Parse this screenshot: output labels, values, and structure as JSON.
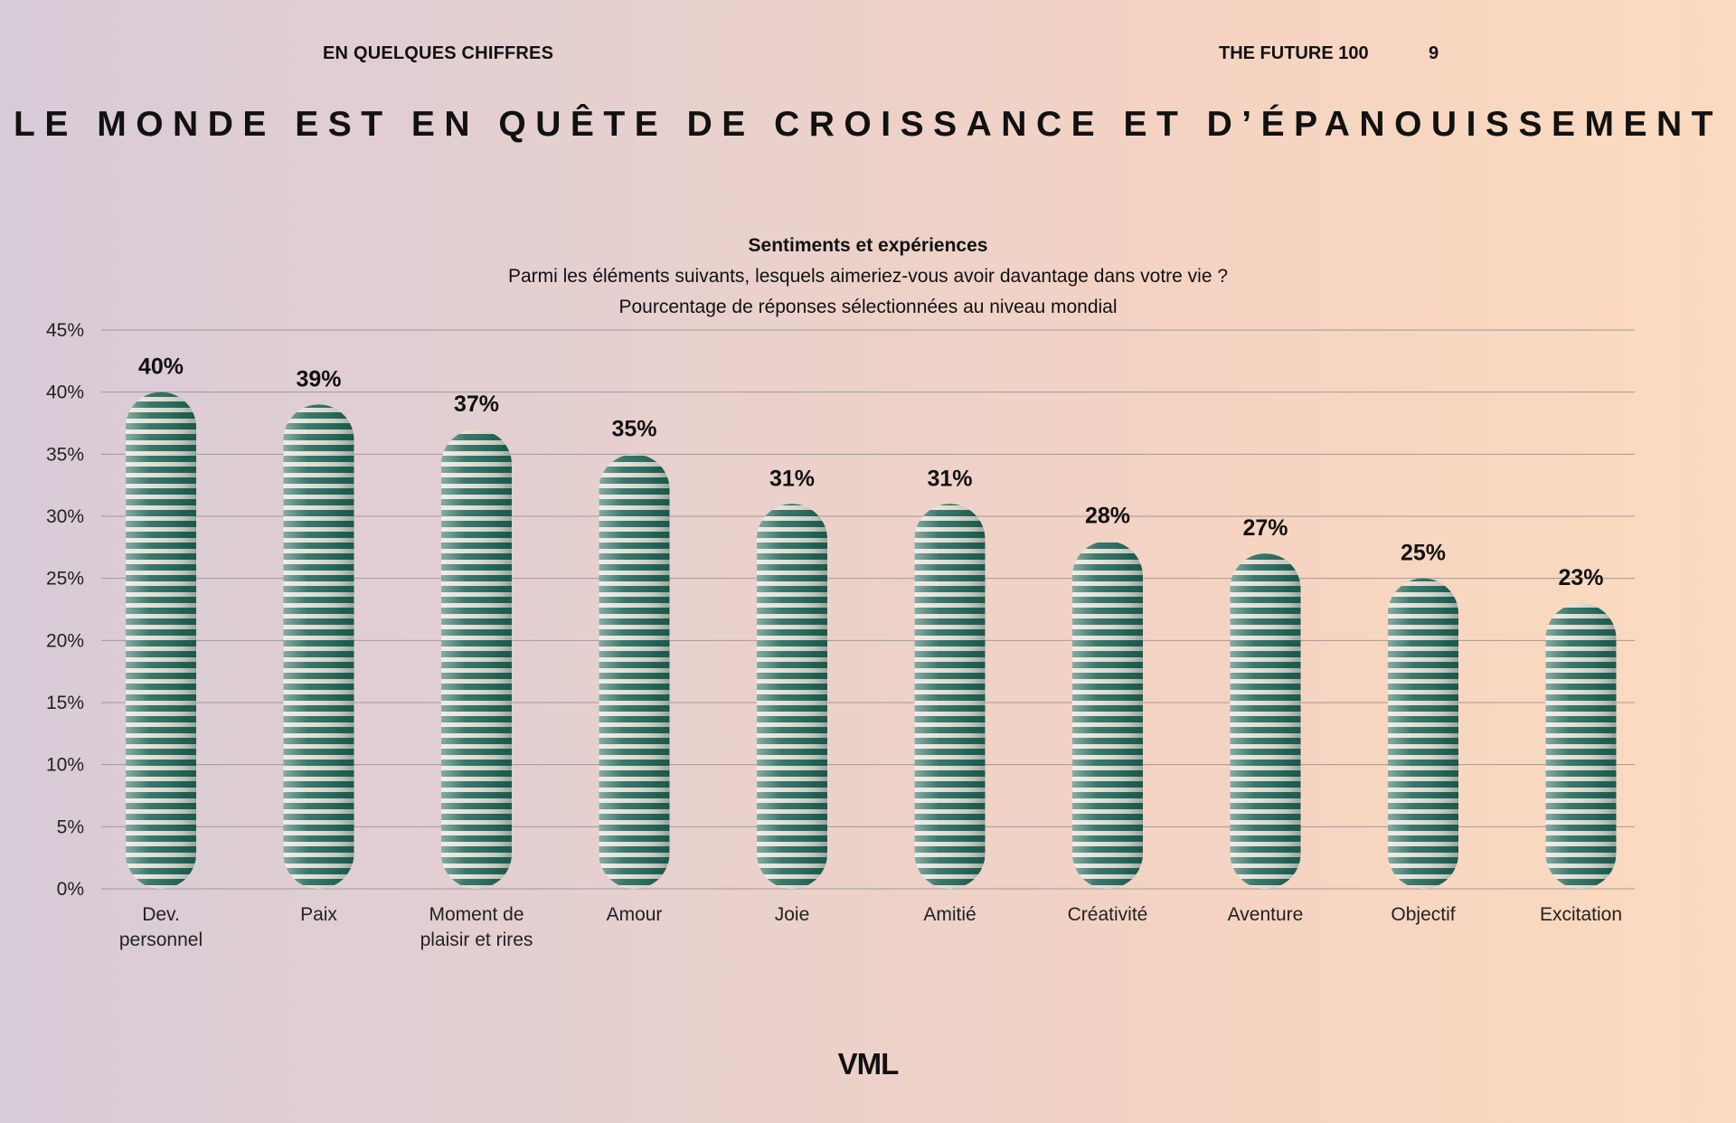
{
  "header": {
    "section": "EN QUELQUES CHIFFRES",
    "publication": "THE FUTURE 100",
    "page_number": "9"
  },
  "main_title": "LE MONDE EST EN QUÊTE DE CROISSANCE ET D’ÉPANOUISSEMENT",
  "footer": {
    "logo": "VML"
  },
  "colors": {
    "bar": "#1e5e4f",
    "bar_light": "#e8e2d8",
    "grid": "#a09a98"
  },
  "chart_data": {
    "type": "bar",
    "title": "Sentiments et expériences",
    "subtitle": "Parmi les éléments suivants, lesquels aimeriez-vous avoir davantage dans votre vie ?",
    "subtitle2": "Pourcentage de réponses sélectionnées au niveau mondial",
    "categories": [
      [
        "Dev.",
        "personnel"
      ],
      [
        "Paix"
      ],
      [
        "Moment de",
        "plaisir et rires"
      ],
      [
        "Amour"
      ],
      [
        "Joie"
      ],
      [
        "Amitié"
      ],
      [
        "Créativité"
      ],
      [
        "Aventure"
      ],
      [
        "Objectif"
      ],
      [
        "Excitation"
      ]
    ],
    "values": [
      40,
      39,
      37,
      35,
      31,
      31,
      28,
      27,
      25,
      23
    ],
    "value_labels": [
      "40%",
      "39%",
      "37%",
      "35%",
      "31%",
      "31%",
      "28%",
      "27%",
      "25%",
      "23%"
    ],
    "yticks": [
      "0%",
      "5%",
      "10%",
      "15%",
      "20%",
      "25%",
      "30%",
      "35%",
      "40%",
      "45%"
    ],
    "ylim": [
      0,
      45
    ],
    "grid": true
  }
}
